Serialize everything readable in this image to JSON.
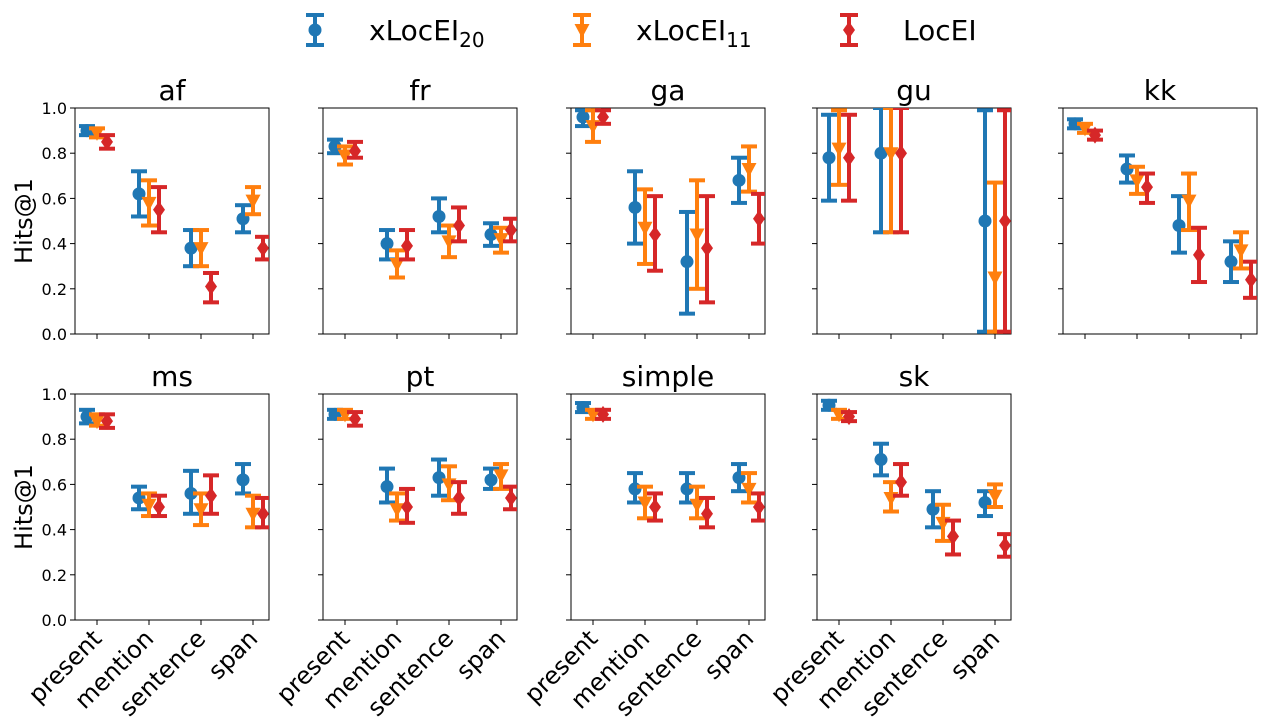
{
  "chart_data": {
    "type": "errorbar",
    "ylabel": "Hits@1",
    "ylim": [
      0,
      1
    ],
    "yticks": [
      "0.0",
      "0.2",
      "0.4",
      "0.6",
      "0.8",
      "1.0"
    ],
    "categories": [
      "present",
      "mention",
      "sentence",
      "span"
    ],
    "legend": {
      "placement": "top-center",
      "items": [
        {
          "key": "xLocEI20",
          "base": "xLocEI",
          "sub": "20",
          "color": "#1f77b4",
          "marker": "circle"
        },
        {
          "key": "xLocEI11",
          "base": "xLocEI",
          "sub": "11",
          "color": "#ff7f0e",
          "marker": "triangle-down"
        },
        {
          "key": "LocEI",
          "base": "LocEI",
          "sub": "",
          "color": "#d62728",
          "marker": "diamond"
        }
      ]
    },
    "panels": [
      {
        "title": "af",
        "series": {
          "xLocEI20": [
            [
              0.9,
              0.88,
              0.92
            ],
            [
              0.62,
              0.52,
              0.72
            ],
            [
              0.38,
              0.3,
              0.46
            ],
            [
              0.51,
              0.45,
              0.57
            ]
          ],
          "xLocEI11": [
            [
              0.89,
              0.87,
              0.91
            ],
            [
              0.58,
              0.48,
              0.68
            ],
            [
              0.38,
              0.3,
              0.46
            ],
            [
              0.59,
              0.53,
              0.65
            ]
          ],
          "LocEI": [
            [
              0.85,
              0.82,
              0.88
            ],
            [
              0.55,
              0.45,
              0.65
            ],
            [
              0.21,
              0.14,
              0.27
            ],
            [
              0.38,
              0.33,
              0.43
            ]
          ]
        }
      },
      {
        "title": "fr",
        "series": {
          "xLocEI20": [
            [
              0.83,
              0.8,
              0.86
            ],
            [
              0.4,
              0.33,
              0.46
            ],
            [
              0.52,
              0.45,
              0.6
            ],
            [
              0.44,
              0.39,
              0.49
            ]
          ],
          "xLocEI11": [
            [
              0.79,
              0.75,
              0.83
            ],
            [
              0.31,
              0.25,
              0.37
            ],
            [
              0.41,
              0.34,
              0.48
            ],
            [
              0.42,
              0.36,
              0.47
            ]
          ],
          "LocEI": [
            [
              0.81,
              0.78,
              0.85
            ],
            [
              0.39,
              0.33,
              0.46
            ],
            [
              0.48,
              0.41,
              0.56
            ],
            [
              0.46,
              0.41,
              0.51
            ]
          ]
        }
      },
      {
        "title": "ga",
        "series": {
          "xLocEI20": [
            [
              0.96,
              0.92,
              0.99
            ],
            [
              0.56,
              0.4,
              0.72
            ],
            [
              0.32,
              0.09,
              0.54
            ],
            [
              0.68,
              0.58,
              0.78
            ]
          ],
          "xLocEI11": [
            [
              0.92,
              0.85,
              0.99
            ],
            [
              0.47,
              0.31,
              0.64
            ],
            [
              0.44,
              0.2,
              0.68
            ],
            [
              0.73,
              0.63,
              0.83
            ]
          ],
          "LocEI": [
            [
              0.96,
              0.93,
              0.99
            ],
            [
              0.44,
              0.28,
              0.61
            ],
            [
              0.38,
              0.14,
              0.61
            ],
            [
              0.51,
              0.4,
              0.62
            ]
          ]
        }
      },
      {
        "title": "gu",
        "series": {
          "xLocEI20": [
            [
              0.78,
              0.59,
              0.97
            ],
            [
              0.8,
              0.45,
              1.0
            ],
            null,
            [
              0.5,
              0.01,
              0.99
            ]
          ],
          "xLocEI11": [
            [
              0.82,
              0.66,
              0.99
            ],
            [
              0.8,
              0.45,
              1.0
            ],
            null,
            [
              0.25,
              0.01,
              0.67
            ]
          ],
          "LocEI": [
            [
              0.78,
              0.59,
              0.97
            ],
            [
              0.8,
              0.45,
              1.0
            ],
            null,
            [
              0.5,
              0.01,
              0.99
            ]
          ]
        }
      },
      {
        "title": "kk",
        "series": {
          "xLocEI20": [
            [
              0.93,
              0.91,
              0.95
            ],
            [
              0.73,
              0.67,
              0.79
            ],
            [
              0.48,
              0.36,
              0.61
            ],
            [
              0.32,
              0.23,
              0.41
            ]
          ],
          "xLocEI11": [
            [
              0.91,
              0.89,
              0.93
            ],
            [
              0.68,
              0.62,
              0.74
            ],
            [
              0.59,
              0.46,
              0.71
            ],
            [
              0.37,
              0.29,
              0.45
            ]
          ],
          "LocEI": [
            [
              0.88,
              0.86,
              0.9
            ],
            [
              0.65,
              0.58,
              0.71
            ],
            [
              0.35,
              0.23,
              0.47
            ],
            [
              0.24,
              0.16,
              0.32
            ]
          ]
        }
      },
      {
        "title": "ms",
        "series": {
          "xLocEI20": [
            [
              0.9,
              0.87,
              0.93
            ],
            [
              0.54,
              0.49,
              0.59
            ],
            [
              0.56,
              0.47,
              0.66
            ],
            [
              0.62,
              0.56,
              0.69
            ]
          ],
          "xLocEI11": [
            [
              0.88,
              0.86,
              0.91
            ],
            [
              0.51,
              0.46,
              0.56
            ],
            [
              0.49,
              0.42,
              0.56
            ],
            [
              0.47,
              0.41,
              0.55
            ]
          ],
          "LocEI": [
            [
              0.88,
              0.85,
              0.91
            ],
            [
              0.5,
              0.46,
              0.55
            ],
            [
              0.55,
              0.47,
              0.64
            ],
            [
              0.47,
              0.41,
              0.54
            ]
          ]
        }
      },
      {
        "title": "pt",
        "series": {
          "xLocEI20": [
            [
              0.91,
              0.89,
              0.93
            ],
            [
              0.59,
              0.52,
              0.67
            ],
            [
              0.63,
              0.55,
              0.71
            ],
            [
              0.62,
              0.58,
              0.67
            ]
          ],
          "xLocEI11": [
            [
              0.91,
              0.89,
              0.93
            ],
            [
              0.49,
              0.44,
              0.56
            ],
            [
              0.6,
              0.53,
              0.68
            ],
            [
              0.64,
              0.58,
              0.69
            ]
          ],
          "LocEI": [
            [
              0.89,
              0.86,
              0.92
            ],
            [
              0.5,
              0.43,
              0.58
            ],
            [
              0.54,
              0.47,
              0.61
            ],
            [
              0.54,
              0.49,
              0.59
            ]
          ]
        }
      },
      {
        "title": "simple",
        "series": {
          "xLocEI20": [
            [
              0.94,
              0.92,
              0.96
            ],
            [
              0.58,
              0.52,
              0.65
            ],
            [
              0.58,
              0.52,
              0.65
            ],
            [
              0.63,
              0.57,
              0.69
            ]
          ],
          "xLocEI11": [
            [
              0.91,
              0.89,
              0.93
            ],
            [
              0.52,
              0.45,
              0.59
            ],
            [
              0.51,
              0.45,
              0.59
            ],
            [
              0.58,
              0.52,
              0.65
            ]
          ],
          "LocEI": [
            [
              0.91,
              0.89,
              0.93
            ],
            [
              0.5,
              0.44,
              0.56
            ],
            [
              0.47,
              0.41,
              0.54
            ],
            [
              0.5,
              0.44,
              0.56
            ]
          ]
        }
      },
      {
        "title": "sk",
        "series": {
          "xLocEI20": [
            [
              0.95,
              0.93,
              0.97
            ],
            [
              0.71,
              0.64,
              0.78
            ],
            [
              0.49,
              0.41,
              0.57
            ],
            [
              0.52,
              0.46,
              0.57
            ]
          ],
          "xLocEI11": [
            [
              0.91,
              0.89,
              0.93
            ],
            [
              0.54,
              0.48,
              0.61
            ],
            [
              0.43,
              0.35,
              0.51
            ],
            [
              0.55,
              0.5,
              0.6
            ]
          ],
          "LocEI": [
            [
              0.9,
              0.88,
              0.92
            ],
            [
              0.61,
              0.55,
              0.69
            ],
            [
              0.37,
              0.29,
              0.44
            ],
            [
              0.33,
              0.28,
              0.38
            ]
          ]
        }
      }
    ]
  }
}
